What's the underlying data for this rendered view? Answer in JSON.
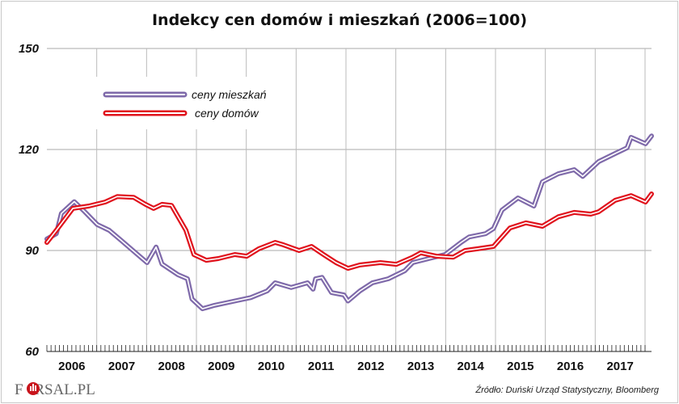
{
  "chart_data": {
    "type": "line",
    "title": "Indekcy cen domów i mieszkań (2006=100)",
    "xlabel": "",
    "ylabel": "",
    "xlim": [
      2006,
      2018
    ],
    "ylim": [
      60,
      150
    ],
    "yticks": [
      150,
      120,
      90,
      60
    ],
    "xtick_labels": [
      "2006",
      "2007",
      "2008",
      "2009",
      "2010",
      "2011",
      "2012",
      "2013",
      "2014",
      "2015",
      "2016",
      "2017"
    ],
    "grid": true,
    "legend_placement": "top-left",
    "series": [
      {
        "name": "ceny mieszkań",
        "color": "#7f6aaa",
        "points": [
          [
            2006.0,
            93.4
          ],
          [
            2006.19,
            95
          ],
          [
            2006.29,
            101
          ],
          [
            2006.55,
            104.5
          ],
          [
            2006.76,
            101.5
          ],
          [
            2007.01,
            97.7
          ],
          [
            2007.25,
            96
          ],
          [
            2007.49,
            93
          ],
          [
            2007.82,
            88.8
          ],
          [
            2008.01,
            86.4
          ],
          [
            2008.19,
            91
          ],
          [
            2008.31,
            86
          ],
          [
            2008.63,
            82.8
          ],
          [
            2008.82,
            81.6
          ],
          [
            2008.91,
            75.6
          ],
          [
            2009.12,
            72.7
          ],
          [
            2009.36,
            73.7
          ],
          [
            2009.77,
            75
          ],
          [
            2010.09,
            76
          ],
          [
            2010.42,
            78
          ],
          [
            2010.58,
            80.4
          ],
          [
            2010.9,
            79
          ],
          [
            2011.23,
            80.4
          ],
          [
            2011.34,
            78.5
          ],
          [
            2011.39,
            81.6
          ],
          [
            2011.52,
            82
          ],
          [
            2011.71,
            77.5
          ],
          [
            2011.96,
            76.8
          ],
          [
            2012.04,
            75
          ],
          [
            2012.28,
            78
          ],
          [
            2012.53,
            80.4
          ],
          [
            2012.85,
            81.6
          ],
          [
            2013.18,
            84
          ],
          [
            2013.34,
            86.4
          ],
          [
            2013.66,
            87.6
          ],
          [
            2013.99,
            88.8
          ],
          [
            2014.31,
            92.4
          ],
          [
            2014.47,
            94
          ],
          [
            2014.8,
            95
          ],
          [
            2014.96,
            96.5
          ],
          [
            2015.13,
            102
          ],
          [
            2015.45,
            105.6
          ],
          [
            2015.77,
            103.2
          ],
          [
            2015.94,
            110.4
          ],
          [
            2016.26,
            112.8
          ],
          [
            2016.58,
            114
          ],
          [
            2016.75,
            112
          ],
          [
            2017.07,
            116.4
          ],
          [
            2017.4,
            118.8
          ],
          [
            2017.64,
            120.5
          ],
          [
            2017.72,
            123.6
          ],
          [
            2018.01,
            121.7
          ],
          [
            2018.13,
            124
          ]
        ]
      },
      {
        "name": "ceny domów",
        "color": "#e0141e",
        "points": [
          [
            2006.0,
            92.4
          ],
          [
            2006.19,
            96
          ],
          [
            2006.52,
            102.5
          ],
          [
            2006.84,
            103.2
          ],
          [
            2007.17,
            104.4
          ],
          [
            2007.41,
            106
          ],
          [
            2007.74,
            105.8
          ],
          [
            2007.98,
            103.7
          ],
          [
            2008.14,
            102.5
          ],
          [
            2008.31,
            103.7
          ],
          [
            2008.5,
            103.4
          ],
          [
            2008.79,
            96
          ],
          [
            2008.95,
            88.8
          ],
          [
            2009.2,
            87.1
          ],
          [
            2009.44,
            87.6
          ],
          [
            2009.77,
            88.8
          ],
          [
            2010.01,
            88.3
          ],
          [
            2010.25,
            90.5
          ],
          [
            2010.58,
            92.4
          ],
          [
            2010.74,
            91.7
          ],
          [
            2011.06,
            90
          ],
          [
            2011.31,
            91.2
          ],
          [
            2011.55,
            88.8
          ],
          [
            2011.8,
            86.4
          ],
          [
            2012.04,
            84.7
          ],
          [
            2012.28,
            85.7
          ],
          [
            2012.69,
            86.4
          ],
          [
            2013.01,
            85.9
          ],
          [
            2013.34,
            88
          ],
          [
            2013.5,
            89.3
          ],
          [
            2013.82,
            88.3
          ],
          [
            2014.15,
            88
          ],
          [
            2014.39,
            90
          ],
          [
            2014.64,
            90.5
          ],
          [
            2014.96,
            91.2
          ],
          [
            2015.29,
            96.7
          ],
          [
            2015.61,
            98.2
          ],
          [
            2015.94,
            97.2
          ],
          [
            2016.26,
            100
          ],
          [
            2016.58,
            101.3
          ],
          [
            2016.91,
            100.8
          ],
          [
            2017.07,
            101.5
          ],
          [
            2017.4,
            104.9
          ],
          [
            2017.72,
            106.3
          ],
          [
            2018.01,
            104.4
          ],
          [
            2018.13,
            106.8
          ]
        ]
      }
    ]
  },
  "logo": "FORSAL.PL",
  "source": "Źródło: Duński Urząd Statystyczny, Bloomberg"
}
